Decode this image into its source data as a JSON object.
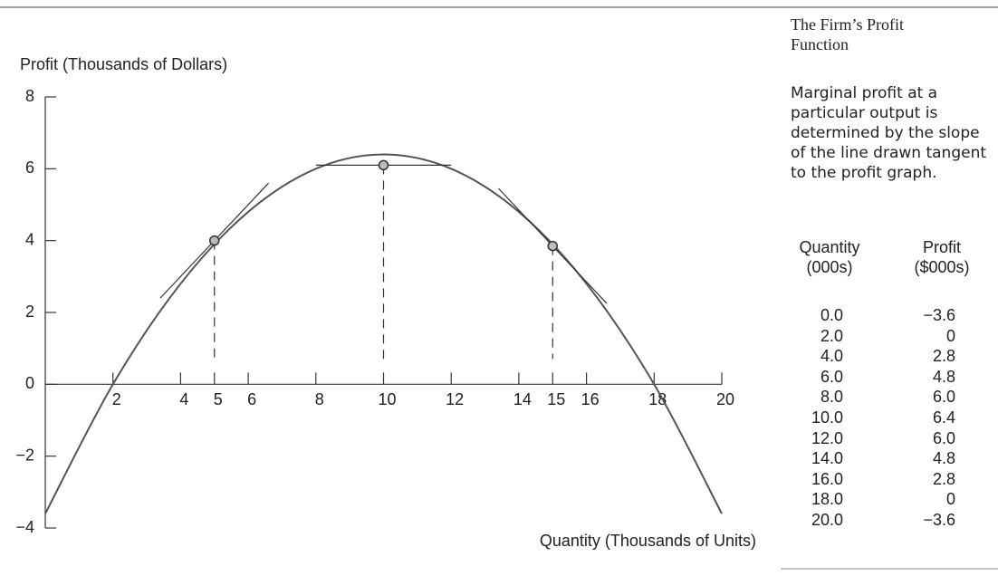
{
  "chart_data": {
    "type": "line",
    "y_axis_label": "Profit (Thousands of Dollars)",
    "x_axis_label": "Quantity (Thousands of Units)",
    "x": [
      0,
      2,
      4,
      6,
      8,
      10,
      12,
      14,
      16,
      18,
      20
    ],
    "values": [
      -3.6,
      0,
      2.8,
      4.8,
      6.0,
      6.4,
      6.0,
      4.8,
      2.8,
      0,
      -3.6
    ],
    "color": "#555555",
    "xlim": [
      0,
      20
    ],
    "ylim": [
      -4,
      8
    ],
    "xticks": [
      2,
      4,
      5,
      6,
      8,
      10,
      12,
      14,
      15,
      16,
      18,
      20
    ],
    "yticks": [
      {
        "value": -4,
        "label": "−4"
      },
      {
        "value": -2,
        "label": "−2"
      },
      0,
      2,
      4,
      6,
      8
    ],
    "points": {
      "x": [
        5,
        10,
        15
      ],
      "values": [
        4.0,
        6.1,
        3.85
      ]
    }
  },
  "panel": {
    "title": "The Firm’s Profit Function",
    "caption": "Marginal profit at a particular output is determined by the slope of the line drawn tangent to the profit graph.",
    "table": {
      "headers": [
        "Quantity (000s)",
        "Profit ($000s)"
      ],
      "quantity": [
        "0.0",
        "2.0",
        "4.0",
        "6.0",
        "8.0",
        "10.0",
        "12.0",
        "14.0",
        "16.0",
        "18.0",
        "20.0"
      ],
      "profit": [
        "−3.6",
        "0",
        "2.8",
        "4.8",
        "6.0",
        "6.4",
        "6.0",
        "4.8",
        "2.8",
        "0",
        "−3.6"
      ]
    }
  }
}
